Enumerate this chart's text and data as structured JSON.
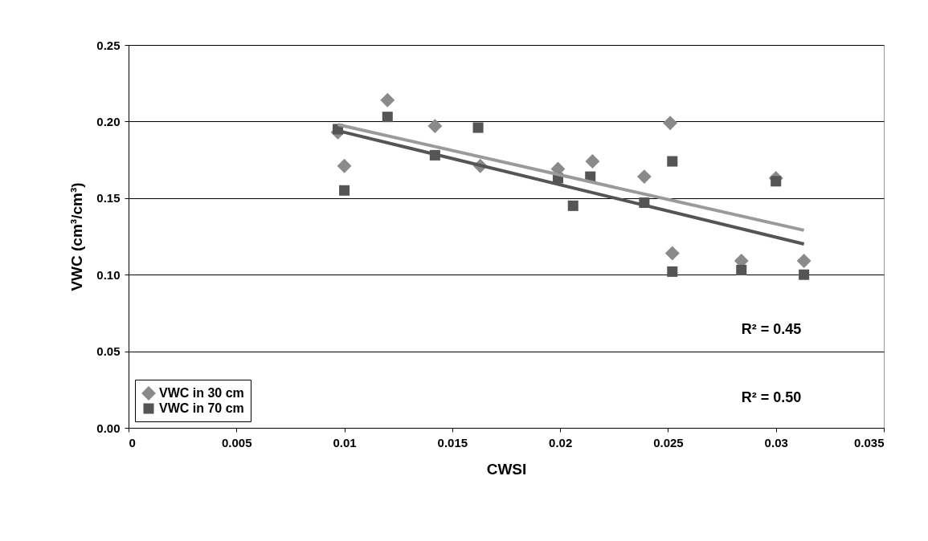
{
  "chart_data": {
    "type": "scatter",
    "xlabel": "CWSI",
    "ylabel": "VWC (cm³/cm³)",
    "xlim": [
      0,
      0.035
    ],
    "xticks": [
      0,
      0.005,
      0.01,
      0.015,
      0.02,
      0.025,
      0.03,
      0.035
    ],
    "ylim": [
      0,
      0.25
    ],
    "yticks": [
      {
        "value": 0,
        "label": "0.00"
      },
      {
        "value": 0.05,
        "label": "0.05"
      },
      {
        "value": 0.1,
        "label": "0.10"
      },
      {
        "value": 0.15,
        "label": "0.15"
      },
      {
        "value": 0.2,
        "label": "0.20"
      },
      {
        "value": 0.25,
        "label": "0.25"
      }
    ],
    "grid": "y",
    "legend": "bottom left",
    "annotations": [
      "R² = 0.45",
      "R² = 0.50"
    ],
    "series": [
      {
        "name": "VWC in 30 cm",
        "marker": "diamond",
        "color": "#8a8a8a",
        "x": [
          0.0097,
          0.01,
          0.012,
          0.0142,
          0.0163,
          0.0199,
          0.0215,
          0.0239,
          0.0251,
          0.0252,
          0.0284,
          0.03,
          0.0313
        ],
        "values": [
          0.193,
          0.171,
          0.214,
          0.197,
          0.171,
          0.169,
          0.174,
          0.164,
          0.199,
          0.114,
          0.109,
          0.163,
          0.109
        ]
      },
      {
        "name": "VWC in 70 cm",
        "marker": "square",
        "color": "#555555",
        "x": [
          0.0097,
          0.01,
          0.012,
          0.0142,
          0.0162,
          0.0199,
          0.0206,
          0.0214,
          0.0239,
          0.0252,
          0.0252,
          0.0284,
          0.03,
          0.0313
        ],
        "values": [
          0.195,
          0.155,
          0.203,
          0.178,
          0.196,
          0.163,
          0.145,
          0.164,
          0.147,
          0.174,
          0.102,
          0.103,
          0.161,
          0.1
        ]
      },
      {
        "type": "line",
        "color": "#9a9a9a",
        "x": [
          0.0097,
          0.0313
        ],
        "values": [
          0.198,
          0.129
        ]
      },
      {
        "type": "line",
        "color": "#555555",
        "x": [
          0.0097,
          0.0313
        ],
        "values": [
          0.194,
          0.12
        ]
      }
    ]
  }
}
